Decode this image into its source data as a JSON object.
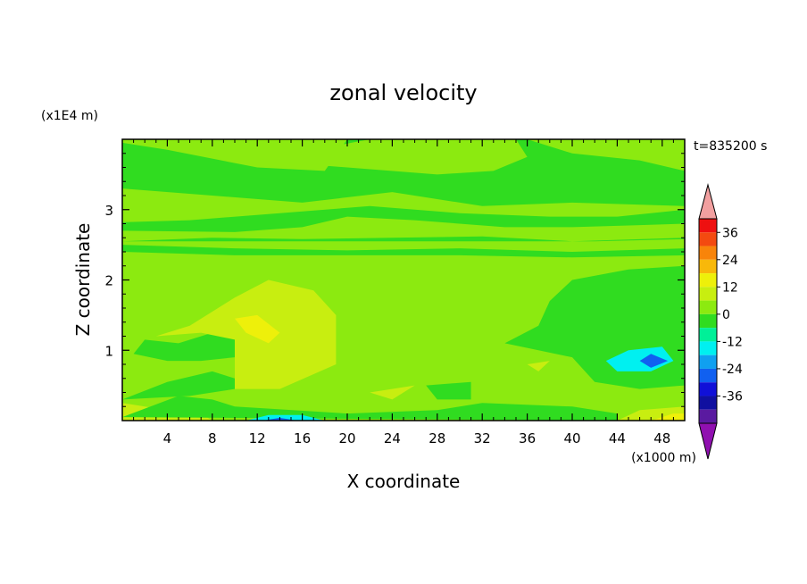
{
  "chart_data": {
    "type": "heatmap",
    "title": "zonal velocity",
    "xlabel": "X coordinate",
    "ylabel": "Z coordinate",
    "x_unit": "(x1000 m)",
    "y_unit": "(x1E4 m)",
    "time_label": "t=835200 s",
    "xlim": [
      0,
      50
    ],
    "ylim": [
      0,
      4
    ],
    "x_ticks": [
      "4",
      "8",
      "12",
      "16",
      "20",
      "24",
      "28",
      "32",
      "36",
      "40",
      "44",
      "48"
    ],
    "y_ticks": [
      "1",
      "2",
      "3"
    ],
    "background_level": 0,
    "colorbar": {
      "labels": [
        "36",
        "24",
        "12",
        "0",
        "-12",
        "-24",
        "-36"
      ],
      "levels": [
        42,
        36,
        30,
        24,
        18,
        12,
        6,
        0,
        -6,
        -12,
        -18,
        -24,
        -30,
        -36,
        -42
      ],
      "colors": [
        "#f2a0a0",
        "#ee1010",
        "#f34a10",
        "#f8840a",
        "#f8b80a",
        "#eef00a",
        "#c8ee10",
        "#8cea10",
        "#30dc20",
        "#00f098",
        "#00f0f0",
        "#10a0f0",
        "#1060f0",
        "#1010d8",
        "#1010a0",
        "#5a1aa0",
        "#9010b0"
      ],
      "over_color": "#f2a0a0",
      "under_color": "#9010b0"
    },
    "regions": [
      {
        "level": 6,
        "points": [
          [
            0,
            0
          ],
          [
            0,
            0.25
          ],
          [
            4,
            0.15
          ],
          [
            7,
            0.1
          ],
          [
            8,
            0
          ]
        ]
      },
      {
        "level": -6,
        "points": [
          [
            0,
            0.05
          ],
          [
            5,
            0.35
          ],
          [
            8,
            0.3
          ],
          [
            10,
            0.2
          ],
          [
            20,
            0.1
          ],
          [
            28,
            0.15
          ],
          [
            32,
            0.25
          ],
          [
            40,
            0.2
          ],
          [
            44,
            0.1
          ],
          [
            44,
            0
          ]
        ]
      },
      {
        "level": -18,
        "points": [
          [
            11,
            0
          ],
          [
            13,
            0.08
          ],
          [
            16,
            0.08
          ],
          [
            18,
            0
          ]
        ]
      },
      {
        "level": -30,
        "points": [
          [
            12.5,
            0
          ],
          [
            14,
            0.04
          ],
          [
            15.5,
            0
          ]
        ]
      },
      {
        "level": 6,
        "points": [
          [
            44,
            0
          ],
          [
            46,
            0.15
          ],
          [
            50,
            0.2
          ],
          [
            50,
            0
          ]
        ]
      },
      {
        "level": 12,
        "points": [
          [
            47,
            0
          ],
          [
            49,
            0.1
          ],
          [
            50,
            0.1
          ],
          [
            50,
            0
          ]
        ]
      },
      {
        "level": -6,
        "points": [
          [
            0,
            0.3
          ],
          [
            4,
            0.55
          ],
          [
            8,
            0.7
          ],
          [
            10,
            0.6
          ],
          [
            10,
            0.45
          ],
          [
            6,
            0.35
          ]
        ]
      },
      {
        "level": -6,
        "points": [
          [
            1,
            0.95
          ],
          [
            4,
            0.85
          ],
          [
            7,
            0.85
          ],
          [
            10,
            0.9
          ],
          [
            10,
            1.25
          ],
          [
            8,
            1.25
          ],
          [
            5,
            1.1
          ],
          [
            2,
            1.15
          ]
        ]
      },
      {
        "level": -6,
        "points": [
          [
            27,
            0.5
          ],
          [
            31,
            0.55
          ],
          [
            31,
            0.3
          ],
          [
            28,
            0.3
          ]
        ]
      },
      {
        "level": 6,
        "points": [
          [
            3,
            1.2
          ],
          [
            6,
            1.35
          ],
          [
            10,
            1.75
          ],
          [
            13,
            2.0
          ],
          [
            17,
            1.85
          ],
          [
            19,
            1.5
          ],
          [
            19,
            0.8
          ],
          [
            14,
            0.45
          ],
          [
            10,
            0.45
          ],
          [
            10,
            1.15
          ],
          [
            7,
            1.25
          ]
        ]
      },
      {
        "level": 12,
        "points": [
          [
            10,
            1.45
          ],
          [
            12,
            1.5
          ],
          [
            14,
            1.25
          ],
          [
            13,
            1.1
          ],
          [
            11,
            1.25
          ]
        ]
      },
      {
        "level": 6,
        "points": [
          [
            22,
            0.4
          ],
          [
            26,
            0.5
          ],
          [
            24,
            0.3
          ]
        ]
      },
      {
        "level": 6,
        "points": [
          [
            36,
            0.8
          ],
          [
            38,
            0.85
          ],
          [
            37,
            0.7
          ]
        ]
      },
      {
        "level": -6,
        "points": [
          [
            34,
            1.1
          ],
          [
            37,
            1.35
          ],
          [
            38,
            1.7
          ],
          [
            40,
            2.0
          ],
          [
            45,
            2.15
          ],
          [
            50,
            2.2
          ],
          [
            50,
            0.5
          ],
          [
            46,
            0.45
          ],
          [
            42,
            0.55
          ],
          [
            40,
            0.9
          ],
          [
            37,
            1.0
          ]
        ]
      },
      {
        "level": -18,
        "points": [
          [
            43,
            0.85
          ],
          [
            45,
            1.0
          ],
          [
            48,
            1.05
          ],
          [
            49,
            0.85
          ],
          [
            47,
            0.7
          ],
          [
            44,
            0.7
          ]
        ]
      },
      {
        "level": -30,
        "points": [
          [
            46,
            0.85
          ],
          [
            47,
            0.95
          ],
          [
            48.5,
            0.85
          ],
          [
            47,
            0.75
          ]
        ]
      },
      {
        "level": -6,
        "points": [
          [
            0,
            2.5
          ],
          [
            10,
            2.45
          ],
          [
            20,
            2.42
          ],
          [
            30,
            2.45
          ],
          [
            40,
            2.4
          ],
          [
            50,
            2.45
          ],
          [
            50,
            2.35
          ],
          [
            40,
            2.32
          ],
          [
            30,
            2.35
          ],
          [
            20,
            2.35
          ],
          [
            10,
            2.35
          ],
          [
            0,
            2.4
          ]
        ]
      },
      {
        "level": -6,
        "points": [
          [
            0,
            2.55
          ],
          [
            8,
            2.6
          ],
          [
            16,
            2.58
          ],
          [
            24,
            2.6
          ],
          [
            32,
            2.62
          ],
          [
            40,
            2.55
          ],
          [
            50,
            2.6
          ],
          [
            50,
            2.58
          ],
          [
            42,
            2.55
          ],
          [
            32,
            2.55
          ],
          [
            22,
            2.55
          ],
          [
            10,
            2.55
          ]
        ]
      },
      {
        "level": -6,
        "points": [
          [
            0,
            2.7
          ],
          [
            10,
            2.68
          ],
          [
            16,
            2.75
          ],
          [
            20,
            2.9
          ],
          [
            26,
            2.85
          ],
          [
            34,
            2.75
          ],
          [
            40,
            2.75
          ],
          [
            46,
            2.78
          ],
          [
            50,
            2.8
          ],
          [
            50,
            3.0
          ],
          [
            44,
            2.9
          ],
          [
            38,
            2.9
          ],
          [
            30,
            2.95
          ],
          [
            22,
            3.05
          ],
          [
            14,
            2.95
          ],
          [
            6,
            2.85
          ],
          [
            0,
            2.82
          ]
        ]
      },
      {
        "level": -6,
        "points": [
          [
            0,
            3.3
          ],
          [
            8,
            3.2
          ],
          [
            16,
            3.1
          ],
          [
            24,
            3.25
          ],
          [
            32,
            3.05
          ],
          [
            40,
            3.1
          ],
          [
            50,
            3.05
          ],
          [
            50,
            3.55
          ],
          [
            46,
            3.7
          ],
          [
            40,
            3.8
          ],
          [
            36,
            4.0
          ],
          [
            20,
            4.0
          ],
          [
            18,
            3.55
          ],
          [
            12,
            3.6
          ],
          [
            4,
            3.85
          ],
          [
            0,
            3.95
          ]
        ]
      },
      {
        "level": 0,
        "points": [
          [
            12,
            3.7
          ],
          [
            20,
            3.6
          ],
          [
            28,
            3.5
          ],
          [
            33,
            3.55
          ],
          [
            36,
            3.75
          ],
          [
            35,
            4.0
          ],
          [
            22,
            4.0
          ],
          [
            17,
            3.85
          ]
        ]
      }
    ]
  }
}
